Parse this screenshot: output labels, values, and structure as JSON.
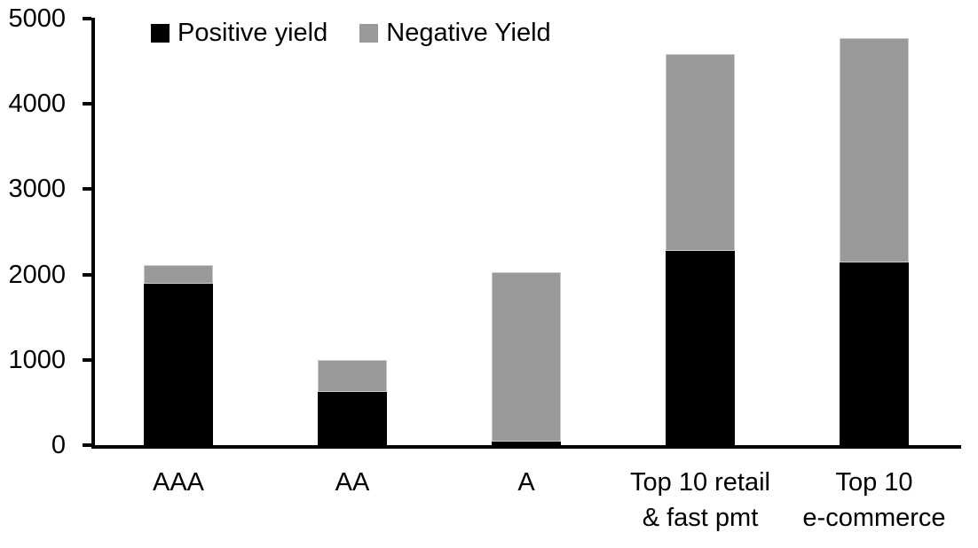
{
  "chart_data": {
    "type": "bar",
    "stacked": true,
    "title": "",
    "categories": [
      "AAA",
      "AA",
      "A",
      "Top 10 retail\n& fast pmt",
      "Top 10\ne-commerce"
    ],
    "series": [
      {
        "name": "Positive yield",
        "color": "#000000",
        "values": [
          1890,
          620,
          40,
          2280,
          2140
        ]
      },
      {
        "name": "Negative Yield",
        "color": "#999999",
        "values": [
          220,
          380,
          1990,
          2300,
          2630
        ]
      }
    ],
    "stack_totals": [
      2110,
      1000,
      2030,
      4580,
      4770
    ],
    "ylim": [
      0,
      5000
    ],
    "ytick_step": 1000,
    "ytick_labels": [
      "0",
      "1000",
      "2000",
      "3000",
      "4000",
      "5000"
    ],
    "xlabel": "",
    "ylabel": "",
    "grid": false,
    "legend_position": "top",
    "axis_color": "#000000",
    "background_color": "#ffffff"
  }
}
